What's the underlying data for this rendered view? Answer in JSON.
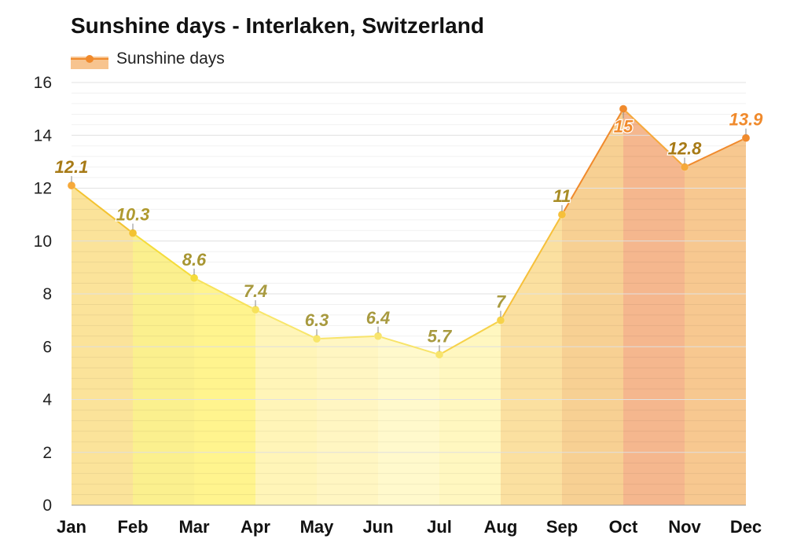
{
  "chart_data": {
    "type": "area",
    "title": "Sunshine days - Interlaken, Switzerland",
    "xlabel": "",
    "ylabel": "",
    "ylim": [
      0,
      16
    ],
    "yticks": [
      0,
      2,
      4,
      6,
      8,
      10,
      12,
      14,
      16
    ],
    "grid": true,
    "legend_position": "top-left",
    "categories": [
      "Jan",
      "Feb",
      "Mar",
      "Apr",
      "May",
      "Jun",
      "Jul",
      "Aug",
      "Sep",
      "Oct",
      "Nov",
      "Dec"
    ],
    "series": [
      {
        "name": "Sunshine days",
        "values": [
          12.1,
          10.3,
          8.6,
          7.4,
          6.3,
          6.4,
          5.7,
          7,
          11,
          15,
          12.8,
          13.9
        ],
        "data_labels": [
          "12.1",
          "10.3",
          "8.6",
          "7.4",
          "6.3",
          "6.4",
          "5.7",
          "7",
          "11",
          "15",
          "12.8",
          "13.9"
        ]
      }
    ],
    "colors": {
      "legend_line": "#f08a2c",
      "legend_swatch": "#f7c48f",
      "grid": "#e2e2e2",
      "axis": "#999999"
    },
    "month_fills": [
      "#fbe39a",
      "#fbf08e",
      "#fff48e",
      "#fff5b8",
      "#fff6c2",
      "#fff9cc",
      "#fff7c0",
      "#fbe0a0",
      "#f7d093",
      "#f5b78e",
      "#f7c890",
      "#f5bb8c"
    ],
    "point_colors": [
      "#f6a93a",
      "#f3c331",
      "#f5dc3a",
      "#f7e25a",
      "#f8e66a",
      "#f8e46c",
      "#f8e46a",
      "#f6d24a",
      "#f6c03a",
      "#f08a2c",
      "#f6a93a",
      "#f08a2c"
    ],
    "label_colors": [
      "#a77a16",
      "#b09a30",
      "#a89633",
      "#a89a40",
      "#a89a40",
      "#a89a40",
      "#a89a40",
      "#a89a40",
      "#a88c25",
      "#f08a2c",
      "#a77a16",
      "#f08a2c"
    ],
    "label_placement": [
      "above",
      "above",
      "above",
      "above",
      "above",
      "above",
      "above",
      "above",
      "above",
      "below",
      "above",
      "above"
    ]
  }
}
